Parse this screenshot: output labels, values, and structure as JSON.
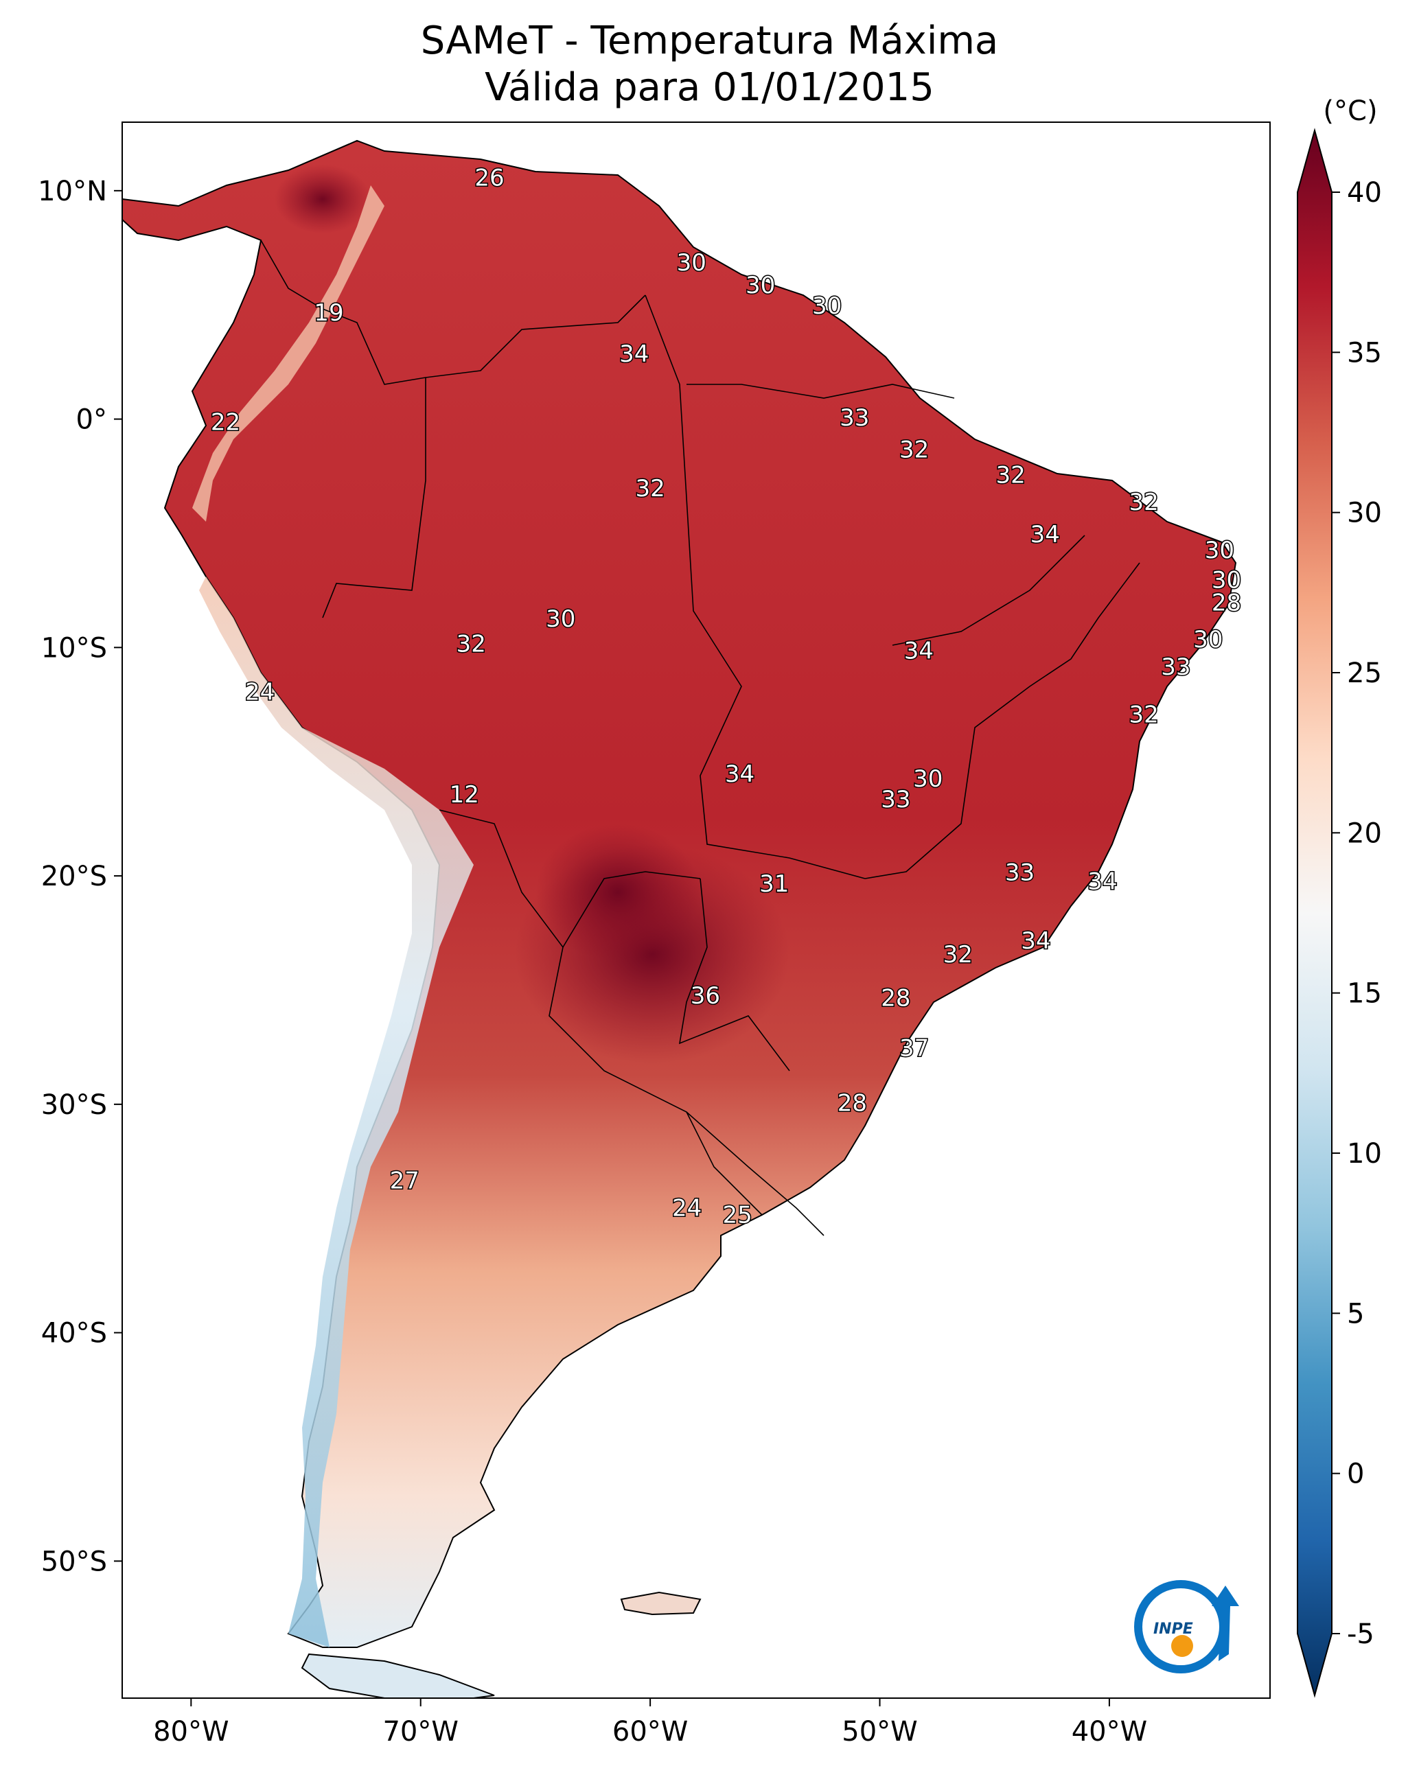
{
  "title": {
    "line1": "SAMeT - Temperatura Máxima",
    "line2": "Válida para 01/01/2015"
  },
  "map": {
    "lon_range": [
      -83,
      -33
    ],
    "lat_range": [
      -56,
      13
    ],
    "lon_ticks": [
      {
        "value": -80,
        "label": "80°W"
      },
      {
        "value": -70,
        "label": "70°W"
      },
      {
        "value": -60,
        "label": "60°W"
      },
      {
        "value": -50,
        "label": "50°W"
      },
      {
        "value": -40,
        "label": "40°W"
      }
    ],
    "lat_ticks": [
      {
        "value": 10,
        "label": "10°N"
      },
      {
        "value": 0,
        "label": "0°"
      },
      {
        "value": -10,
        "label": "10°S"
      },
      {
        "value": -20,
        "label": "20°S"
      },
      {
        "value": -30,
        "label": "30°S"
      },
      {
        "value": -40,
        "label": "40°S"
      },
      {
        "value": -50,
        "label": "50°S"
      }
    ],
    "ocean_color": "#ffffff",
    "border_color": "#000000"
  },
  "colorbar": {
    "unit": "(°C)",
    "min": -7,
    "max": 42,
    "colors": [
      "#053061",
      "#2166ac",
      "#4393c3",
      "#92c5de",
      "#d1e5f0",
      "#f7f7f7",
      "#fddbc7",
      "#f4a582",
      "#d6604d",
      "#b2182b",
      "#67001f"
    ],
    "ticks": [
      {
        "value": -5,
        "label": "-5"
      },
      {
        "value": 0,
        "label": "0"
      },
      {
        "value": 5,
        "label": "5"
      },
      {
        "value": 10,
        "label": "10"
      },
      {
        "value": 15,
        "label": "15"
      },
      {
        "value": 20,
        "label": "20"
      },
      {
        "value": 25,
        "label": "25"
      },
      {
        "value": 30,
        "label": "30"
      },
      {
        "value": 35,
        "label": "35"
      },
      {
        "value": 40,
        "label": "40"
      }
    ]
  },
  "city_labels": [
    {
      "lon": -67.0,
      "lat": 10.5,
      "text": "26"
    },
    {
      "lon": -74.0,
      "lat": 4.6,
      "text": "19"
    },
    {
      "lon": -78.5,
      "lat": -0.2,
      "text": "22"
    },
    {
      "lon": -58.2,
      "lat": 6.8,
      "text": "30"
    },
    {
      "lon": -55.2,
      "lat": 5.8,
      "text": "30"
    },
    {
      "lon": -52.3,
      "lat": 4.9,
      "text": "30"
    },
    {
      "lon": -60.7,
      "lat": 2.8,
      "text": "34"
    },
    {
      "lon": -51.1,
      "lat": 0.0,
      "text": "33"
    },
    {
      "lon": -48.5,
      "lat": -1.4,
      "text": "32"
    },
    {
      "lon": -44.3,
      "lat": -2.5,
      "text": "32"
    },
    {
      "lon": -38.5,
      "lat": -3.7,
      "text": "32"
    },
    {
      "lon": -60.0,
      "lat": -3.1,
      "text": "32"
    },
    {
      "lon": -42.8,
      "lat": -5.1,
      "text": "34"
    },
    {
      "lon": -35.2,
      "lat": -5.8,
      "text": "30"
    },
    {
      "lon": -34.9,
      "lat": -7.1,
      "text": "30"
    },
    {
      "lon": -34.9,
      "lat": -8.1,
      "text": "28"
    },
    {
      "lon": -63.9,
      "lat": -8.8,
      "text": "30"
    },
    {
      "lon": -67.8,
      "lat": -9.9,
      "text": "32"
    },
    {
      "lon": -48.3,
      "lat": -10.2,
      "text": "34"
    },
    {
      "lon": -35.7,
      "lat": -9.7,
      "text": "30"
    },
    {
      "lon": -37.1,
      "lat": -10.9,
      "text": "33"
    },
    {
      "lon": -38.5,
      "lat": -13.0,
      "text": "32"
    },
    {
      "lon": -77.0,
      "lat": -12.0,
      "text": "24"
    },
    {
      "lon": -68.1,
      "lat": -16.5,
      "text": "12"
    },
    {
      "lon": -56.1,
      "lat": -15.6,
      "text": "34"
    },
    {
      "lon": -47.9,
      "lat": -15.8,
      "text": "30"
    },
    {
      "lon": -49.3,
      "lat": -16.7,
      "text": "33"
    },
    {
      "lon": -43.9,
      "lat": -19.9,
      "text": "33"
    },
    {
      "lon": -40.3,
      "lat": -20.3,
      "text": "34"
    },
    {
      "lon": -54.6,
      "lat": -20.4,
      "text": "31"
    },
    {
      "lon": -43.2,
      "lat": -22.9,
      "text": "34"
    },
    {
      "lon": -46.6,
      "lat": -23.5,
      "text": "32"
    },
    {
      "lon": -57.6,
      "lat": -25.3,
      "text": "36"
    },
    {
      "lon": -49.3,
      "lat": -25.4,
      "text": "28"
    },
    {
      "lon": -48.5,
      "lat": -27.6,
      "text": "37"
    },
    {
      "lon": -51.2,
      "lat": -30.0,
      "text": "28"
    },
    {
      "lon": -70.7,
      "lat": -33.4,
      "text": "27"
    },
    {
      "lon": -58.4,
      "lat": -34.6,
      "text": "24"
    },
    {
      "lon": -56.2,
      "lat": -34.9,
      "text": "25"
    }
  ],
  "logo": {
    "text": "INPE"
  }
}
